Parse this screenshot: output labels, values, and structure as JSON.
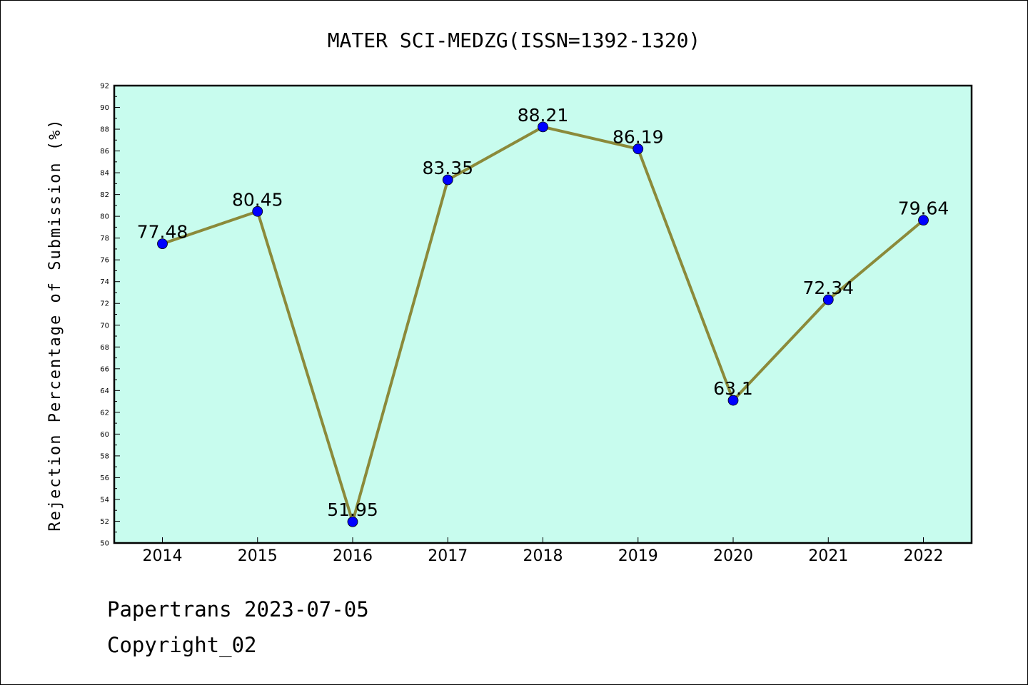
{
  "chart_data": {
    "type": "line",
    "title": "MATER SCI-MEDZG(ISSN=1392-1320)",
    "xlabel": "",
    "ylabel": "Rejection Percentage of Submission (%)",
    "categories": [
      "2014",
      "2015",
      "2016",
      "2017",
      "2018",
      "2019",
      "2020",
      "2021",
      "2022"
    ],
    "values": [
      77.48,
      80.45,
      51.95,
      83.35,
      88.21,
      86.19,
      63.1,
      72.34,
      79.64
    ],
    "data_labels": [
      "77.48",
      "80.45",
      "51.95",
      "83.35",
      "88.21",
      "86.19",
      "63.1",
      "72.34",
      "79.64"
    ],
    "ylim": [
      50,
      92
    ],
    "ytick_step": 2,
    "grid": false,
    "colors": {
      "plot_background": "#c8fcee",
      "line": "#8b8a3a",
      "marker": "#0000ff"
    }
  },
  "footer": {
    "line1": "Papertrans 2023-07-05",
    "line2": "Copyright_02"
  }
}
